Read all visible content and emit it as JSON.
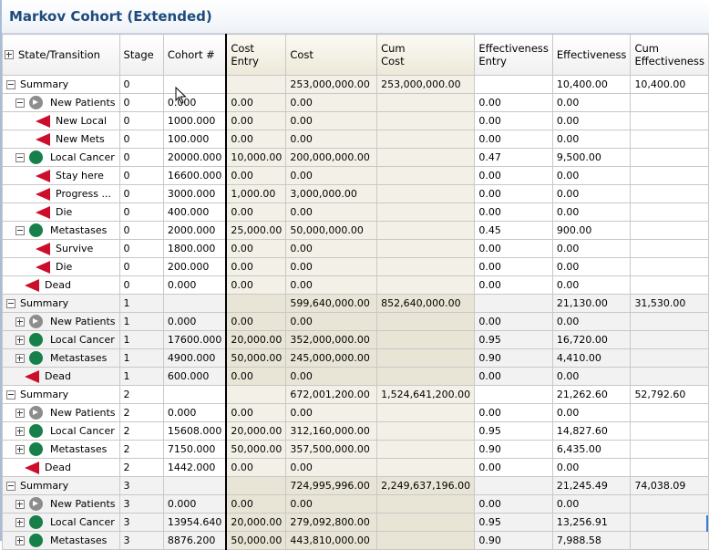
{
  "window": {
    "title": "Markov Cohort (Extended)"
  },
  "columns": [
    {
      "key": "state",
      "label": "State/Transition",
      "label2": ""
    },
    {
      "key": "stage",
      "label": "Stage",
      "label2": ""
    },
    {
      "key": "cohort",
      "label": "Cohort #",
      "label2": ""
    },
    {
      "key": "cost_entry",
      "label": "Cost",
      "label2": "Entry"
    },
    {
      "key": "cost",
      "label": "Cost",
      "label2": ""
    },
    {
      "key": "cum_cost",
      "label": "Cum",
      "label2": "Cost"
    },
    {
      "key": "eff_entry",
      "label": "Effectiveness",
      "label2": "Entry"
    },
    {
      "key": "eff",
      "label": "Effectiveness",
      "label2": ""
    },
    {
      "key": "cum_eff",
      "label": "Cum",
      "label2": "Effectiveness"
    }
  ],
  "header_expand_icon": "plus-box",
  "rows": [
    {
      "level": 0,
      "toggle": "minus",
      "icon": "none",
      "name": "Summary",
      "stage": "0",
      "cohort": "",
      "cost_entry": "",
      "cost": "253,000,000.00",
      "cum_cost": "253,000,000.00",
      "eff_entry": "",
      "eff": "10,400.00",
      "cum_eff": "10,400.00",
      "shade": "white"
    },
    {
      "level": 1,
      "toggle": "minus",
      "icon": "arrow-circle",
      "name": "New Patients",
      "stage": "0",
      "cohort": "0.000",
      "cost_entry": "0.00",
      "cost": "0.00",
      "cum_cost": "",
      "eff_entry": "0.00",
      "eff": "0.00",
      "cum_eff": "",
      "shade": "white"
    },
    {
      "level": 2,
      "toggle": "none",
      "icon": "triangle",
      "name": "New Local",
      "stage": "0",
      "cohort": "1000.000",
      "cost_entry": "0.00",
      "cost": "0.00",
      "cum_cost": "",
      "eff_entry": "0.00",
      "eff": "0.00",
      "cum_eff": "",
      "shade": "white"
    },
    {
      "level": 2,
      "toggle": "none",
      "icon": "triangle",
      "name": "New Mets",
      "stage": "0",
      "cohort": "100.000",
      "cost_entry": "0.00",
      "cost": "0.00",
      "cum_cost": "",
      "eff_entry": "0.00",
      "eff": "0.00",
      "cum_eff": "",
      "shade": "white"
    },
    {
      "level": 1,
      "toggle": "minus",
      "icon": "green-circle",
      "name": "Local Cancer",
      "stage": "0",
      "cohort": "20000.000",
      "cost_entry": "10,000.00",
      "cost": "200,000,000.00",
      "cum_cost": "",
      "eff_entry": "0.47",
      "eff": "9,500.00",
      "cum_eff": "",
      "shade": "white"
    },
    {
      "level": 2,
      "toggle": "none",
      "icon": "triangle",
      "name": "Stay here",
      "stage": "0",
      "cohort": "16600.000",
      "cost_entry": "0.00",
      "cost": "0.00",
      "cum_cost": "",
      "eff_entry": "0.00",
      "eff": "0.00",
      "cum_eff": "",
      "shade": "white"
    },
    {
      "level": 2,
      "toggle": "none",
      "icon": "triangle",
      "name": "Progress ...",
      "stage": "0",
      "cohort": "3000.000",
      "cost_entry": "1,000.00",
      "cost": "3,000,000.00",
      "cum_cost": "",
      "eff_entry": "0.00",
      "eff": "0.00",
      "cum_eff": "",
      "shade": "white"
    },
    {
      "level": 2,
      "toggle": "none",
      "icon": "triangle",
      "name": "Die",
      "stage": "0",
      "cohort": "400.000",
      "cost_entry": "0.00",
      "cost": "0.00",
      "cum_cost": "",
      "eff_entry": "0.00",
      "eff": "0.00",
      "cum_eff": "",
      "shade": "white"
    },
    {
      "level": 1,
      "toggle": "minus",
      "icon": "green-circle",
      "name": "Metastases",
      "stage": "0",
      "cohort": "2000.000",
      "cost_entry": "25,000.00",
      "cost": "50,000,000.00",
      "cum_cost": "",
      "eff_entry": "0.45",
      "eff": "900.00",
      "cum_eff": "",
      "shade": "white"
    },
    {
      "level": 2,
      "toggle": "none",
      "icon": "triangle",
      "name": "Survive",
      "stage": "0",
      "cohort": "1800.000",
      "cost_entry": "0.00",
      "cost": "0.00",
      "cum_cost": "",
      "eff_entry": "0.00",
      "eff": "0.00",
      "cum_eff": "",
      "shade": "white"
    },
    {
      "level": 2,
      "toggle": "none",
      "icon": "triangle",
      "name": "Die",
      "stage": "0",
      "cohort": "200.000",
      "cost_entry": "0.00",
      "cost": "0.00",
      "cum_cost": "",
      "eff_entry": "0.00",
      "eff": "0.00",
      "cum_eff": "",
      "shade": "white"
    },
    {
      "level": 1,
      "toggle": "none",
      "icon": "triangle",
      "name": "Dead",
      "stage": "0",
      "cohort": "0.000",
      "cost_entry": "0.00",
      "cost": "0.00",
      "cum_cost": "",
      "eff_entry": "0.00",
      "eff": "0.00",
      "cum_eff": "",
      "shade": "white"
    },
    {
      "level": 0,
      "toggle": "minus",
      "icon": "none",
      "name": "Summary",
      "stage": "1",
      "cohort": "",
      "cost_entry": "",
      "cost": "599,640,000.00",
      "cum_cost": "852,640,000.00",
      "eff_entry": "",
      "eff": "21,130.00",
      "cum_eff": "31,530.00",
      "shade": "grey"
    },
    {
      "level": 1,
      "toggle": "plus",
      "icon": "arrow-circle",
      "name": "New Patients",
      "stage": "1",
      "cohort": "0.000",
      "cost_entry": "0.00",
      "cost": "0.00",
      "cum_cost": "",
      "eff_entry": "0.00",
      "eff": "0.00",
      "cum_eff": "",
      "shade": "grey"
    },
    {
      "level": 1,
      "toggle": "plus",
      "icon": "green-circle",
      "name": "Local Cancer",
      "stage": "1",
      "cohort": "17600.000",
      "cost_entry": "20,000.00",
      "cost": "352,000,000.00",
      "cum_cost": "",
      "eff_entry": "0.95",
      "eff": "16,720.00",
      "cum_eff": "",
      "shade": "grey"
    },
    {
      "level": 1,
      "toggle": "plus",
      "icon": "green-circle",
      "name": "Metastases",
      "stage": "1",
      "cohort": "4900.000",
      "cost_entry": "50,000.00",
      "cost": "245,000,000.00",
      "cum_cost": "",
      "eff_entry": "0.90",
      "eff": "4,410.00",
      "cum_eff": "",
      "shade": "grey"
    },
    {
      "level": 1,
      "toggle": "none",
      "icon": "triangle",
      "name": "Dead",
      "stage": "1",
      "cohort": "600.000",
      "cost_entry": "0.00",
      "cost": "0.00",
      "cum_cost": "",
      "eff_entry": "0.00",
      "eff": "0.00",
      "cum_eff": "",
      "shade": "grey"
    },
    {
      "level": 0,
      "toggle": "minus",
      "icon": "none",
      "name": "Summary",
      "stage": "2",
      "cohort": "",
      "cost_entry": "",
      "cost": "672,001,200.00",
      "cum_cost": "1,524,641,200.00",
      "eff_entry": "",
      "eff": "21,262.60",
      "cum_eff": "52,792.60",
      "shade": "white"
    },
    {
      "level": 1,
      "toggle": "plus",
      "icon": "arrow-circle",
      "name": "New Patients",
      "stage": "2",
      "cohort": "0.000",
      "cost_entry": "0.00",
      "cost": "0.00",
      "cum_cost": "",
      "eff_entry": "0.00",
      "eff": "0.00",
      "cum_eff": "",
      "shade": "white"
    },
    {
      "level": 1,
      "toggle": "plus",
      "icon": "green-circle",
      "name": "Local Cancer",
      "stage": "2",
      "cohort": "15608.000",
      "cost_entry": "20,000.00",
      "cost": "312,160,000.00",
      "cum_cost": "",
      "eff_entry": "0.95",
      "eff": "14,827.60",
      "cum_eff": "",
      "shade": "white"
    },
    {
      "level": 1,
      "toggle": "plus",
      "icon": "green-circle",
      "name": "Metastases",
      "stage": "2",
      "cohort": "7150.000",
      "cost_entry": "50,000.00",
      "cost": "357,500,000.00",
      "cum_cost": "",
      "eff_entry": "0.90",
      "eff": "6,435.00",
      "cum_eff": "",
      "shade": "white"
    },
    {
      "level": 1,
      "toggle": "none",
      "icon": "triangle",
      "name": "Dead",
      "stage": "2",
      "cohort": "1442.000",
      "cost_entry": "0.00",
      "cost": "0.00",
      "cum_cost": "",
      "eff_entry": "0.00",
      "eff": "0.00",
      "cum_eff": "",
      "shade": "white"
    },
    {
      "level": 0,
      "toggle": "minus",
      "icon": "none",
      "name": "Summary",
      "stage": "3",
      "cohort": "",
      "cost_entry": "",
      "cost": "724,995,996.00",
      "cum_cost": "2,249,637,196.00",
      "eff_entry": "",
      "eff": "21,245.49",
      "cum_eff": "74,038.09",
      "shade": "grey"
    },
    {
      "level": 1,
      "toggle": "plus",
      "icon": "arrow-circle",
      "name": "New Patients",
      "stage": "3",
      "cohort": "0.000",
      "cost_entry": "0.00",
      "cost": "0.00",
      "cum_cost": "",
      "eff_entry": "0.00",
      "eff": "0.00",
      "cum_eff": "",
      "shade": "grey"
    },
    {
      "level": 1,
      "toggle": "plus",
      "icon": "green-circle",
      "name": "Local Cancer",
      "stage": "3",
      "cohort": "13954.640",
      "cost_entry": "20,000.00",
      "cost": "279,092,800.00",
      "cum_cost": "",
      "eff_entry": "0.95",
      "eff": "13,256.91",
      "cum_eff": "",
      "shade": "grey"
    },
    {
      "level": 1,
      "toggle": "plus",
      "icon": "green-circle",
      "name": "Metastases",
      "stage": "3",
      "cohort": "8876.200",
      "cost_entry": "50,000.00",
      "cost": "443,810,000.00",
      "cum_cost": "",
      "eff_entry": "0.90",
      "eff": "7,988.58",
      "cum_eff": "",
      "shade": "grey"
    }
  ],
  "colors": {
    "title": "#1e4a7c",
    "state_circle": "#17804a",
    "transition_triangle": "#cc0d2b",
    "new_patients_icon": "#8d8d8d",
    "cost_columns_bg": "#f3f1e7"
  }
}
